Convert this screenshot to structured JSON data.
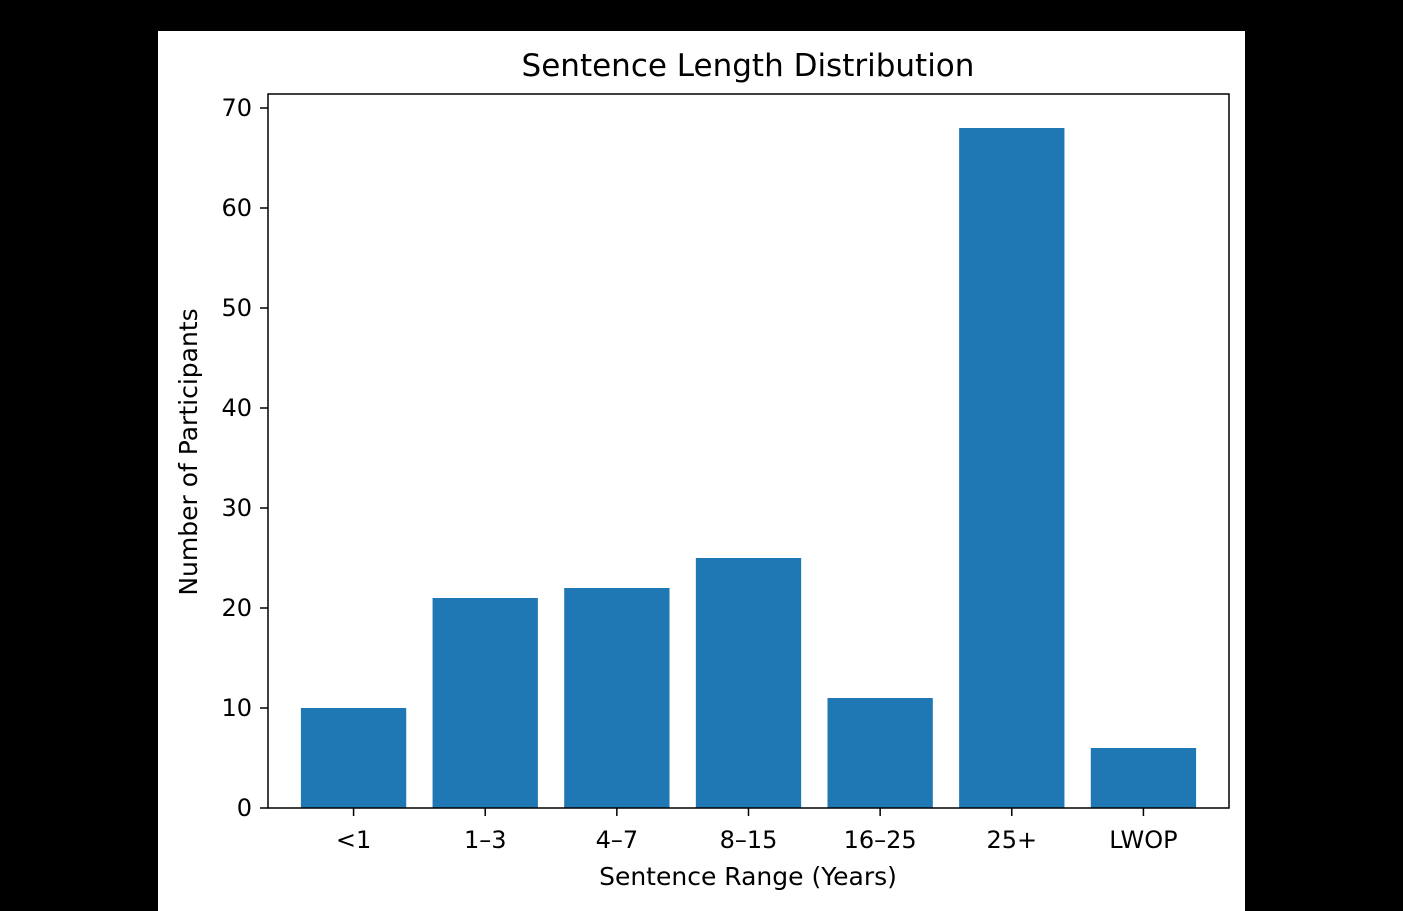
{
  "chart_data": {
    "type": "bar",
    "title": "Sentence Length Distribution",
    "xlabel": "Sentence Range (Years)",
    "ylabel": "Number of Participants",
    "categories": [
      "<1",
      "1–3",
      "4–7",
      "8–15",
      "16–25",
      "25+",
      "LWOP"
    ],
    "values": [
      10,
      21,
      22,
      25,
      11,
      68,
      6
    ],
    "ylim": [
      0,
      71.4
    ],
    "yticks": [
      0,
      10,
      20,
      30,
      40,
      50,
      60,
      70
    ],
    "ytick_labels": [
      "0",
      "10",
      "20",
      "30",
      "40",
      "50",
      "60",
      "70"
    ],
    "grid": false,
    "bar_color": "#1f77b4",
    "background_color": "#000000",
    "figure_color": "#ffffff"
  }
}
